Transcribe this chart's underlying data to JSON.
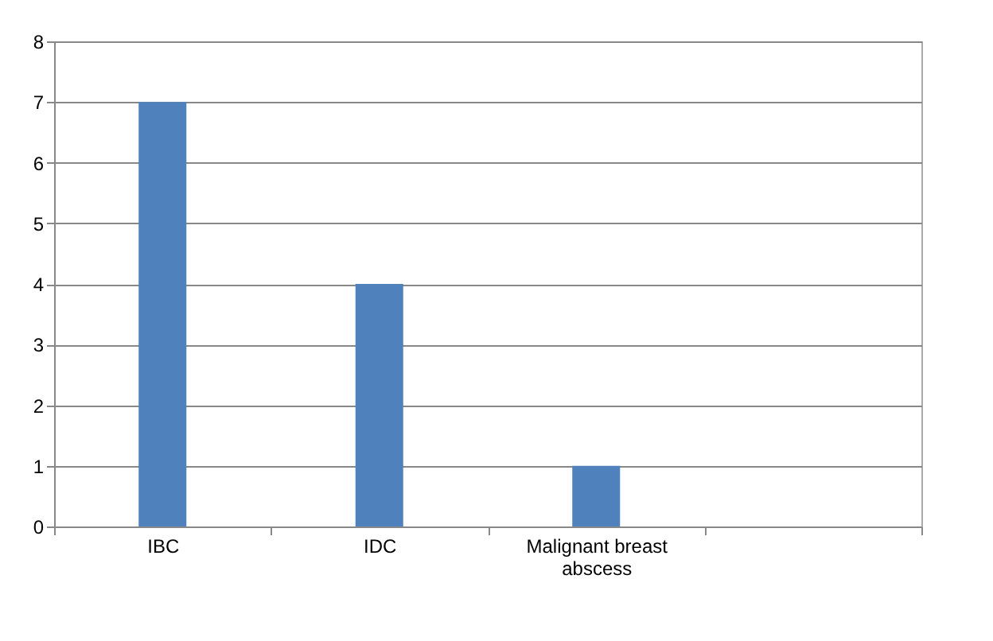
{
  "chart_data": {
    "type": "bar",
    "categories": [
      "IBC",
      "IDC",
      "Malignant breast abscess",
      null
    ],
    "values": [
      7,
      4,
      1,
      null
    ],
    "color": "#4f81bd",
    "ylim": [
      0,
      8
    ],
    "yticks": [
      0,
      1,
      2,
      3,
      4,
      5,
      6,
      7,
      8
    ],
    "grid": "y",
    "legend": false
  }
}
